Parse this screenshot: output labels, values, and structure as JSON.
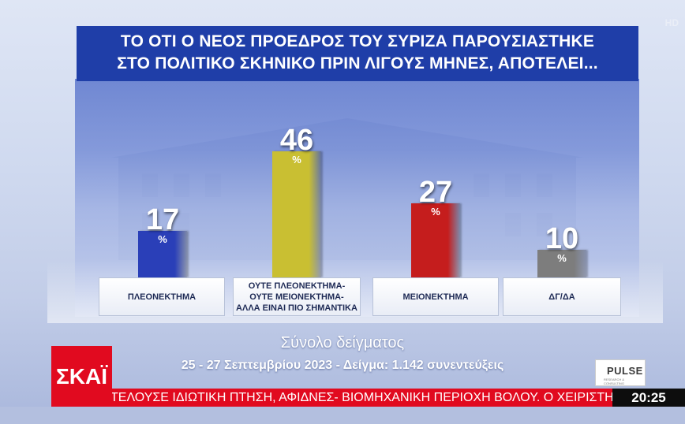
{
  "title": {
    "line1": "ΤΟ ΟΤΙ Ο ΝΕΟΣ ΠΡΟΕΔΡΟΣ ΤΟΥ ΣΥΡΙΖΑ ΠΑΡΟΥΣΙΑΣΤΗΚΕ",
    "line2": "ΣΤΟ ΠΟΛΙΤΙΚΟ ΣΚΗΝΙΚΟ ΠΡΙΝ ΛΙΓΟΥΣ ΜΗΝΕΣ, ΑΠΟΤΕΛΕΙ..."
  },
  "hd_badge": "HD",
  "chart_data": {
    "type": "bar",
    "title": "ΤΟ ΟΤΙ Ο ΝΕΟΣ ΠΡΟΕΔΡΟΣ ΤΟΥ ΣΥΡΙΖΑ ΠΑΡΟΥΣΙΑΣΤΗΚΕ ΣΤΟ ΠΟΛΙΤΙΚΟ ΣΚΗΝΙΚΟ ΠΡΙΝ ΛΙΓΟΥΣ ΜΗΝΕΣ, ΑΠΟΤΕΛΕΙ...",
    "categories": [
      "ΠΛΕΟΝΕΚΤΗΜΑ",
      "ΟΥΤΕ ΠΛΕΟΝΕΚΤΗΜΑ- ΟΥΤΕ ΜΕΙΟΝΕΚΤΗΜΑ- ΑΛΛΑ ΕΙΝΑΙ ΠΙΟ ΣΗΜΑΝΤΙΚΑ",
      "ΜΕΙΟΝΕΚΤΗΜΑ",
      "ΔΓ/ΔΑ"
    ],
    "category_lines": [
      [
        "ΠΛΕΟΝΕΚΤΗΜΑ"
      ],
      [
        "ΟΥΤΕ ΠΛΕΟΝΕΚΤΗΜΑ-",
        "ΟΥΤΕ ΜΕΙΟΝΕΚΤΗΜΑ-",
        "ΑΛΛΑ ΕΙΝΑΙ ΠΙΟ ΣΗΜΑΝΤΙΚΑ"
      ],
      [
        "ΜΕΙΟΝΕΚΤΗΜΑ"
      ],
      [
        "ΔΓ/ΔΑ"
      ]
    ],
    "values": [
      17,
      46,
      27,
      10
    ],
    "value_labels": [
      "17",
      "46",
      "27",
      "10"
    ],
    "unit": "%",
    "colors": [
      "#2a3fb8",
      "#c9bf32",
      "#c51d1d",
      "#7d7d7d"
    ],
    "ylim": [
      0,
      50
    ],
    "grid": false,
    "legend": "none"
  },
  "footer": {
    "sample_label": "Σύνολο δείγματος",
    "sample_details": "25 - 27 Σεπτεμβρίου 2023 - Δείγμα: 1.142 συνεντεύξεις"
  },
  "broadcast": {
    "channel_logo": "ΣΚΑΪ",
    "pollster_logo": "PULSE",
    "pollster_sub": "RESEARCH & CONSULTING",
    "ticker": "ΤΕΛΟΥΣΕ ΙΔΙΩΤΙΚΗ ΠΤΗΣΗ, ΑΦΙΔΝΕΣ- ΒΙΟΜΗΧΑΝΙΚΗ ΠΕΡΙΟΧΗ ΒΟΛΟΥ. Ο ΧΕΙΡΙΣΤΗΣ ΖΗΤΗΣΕ Λ",
    "clock": "20:25"
  }
}
